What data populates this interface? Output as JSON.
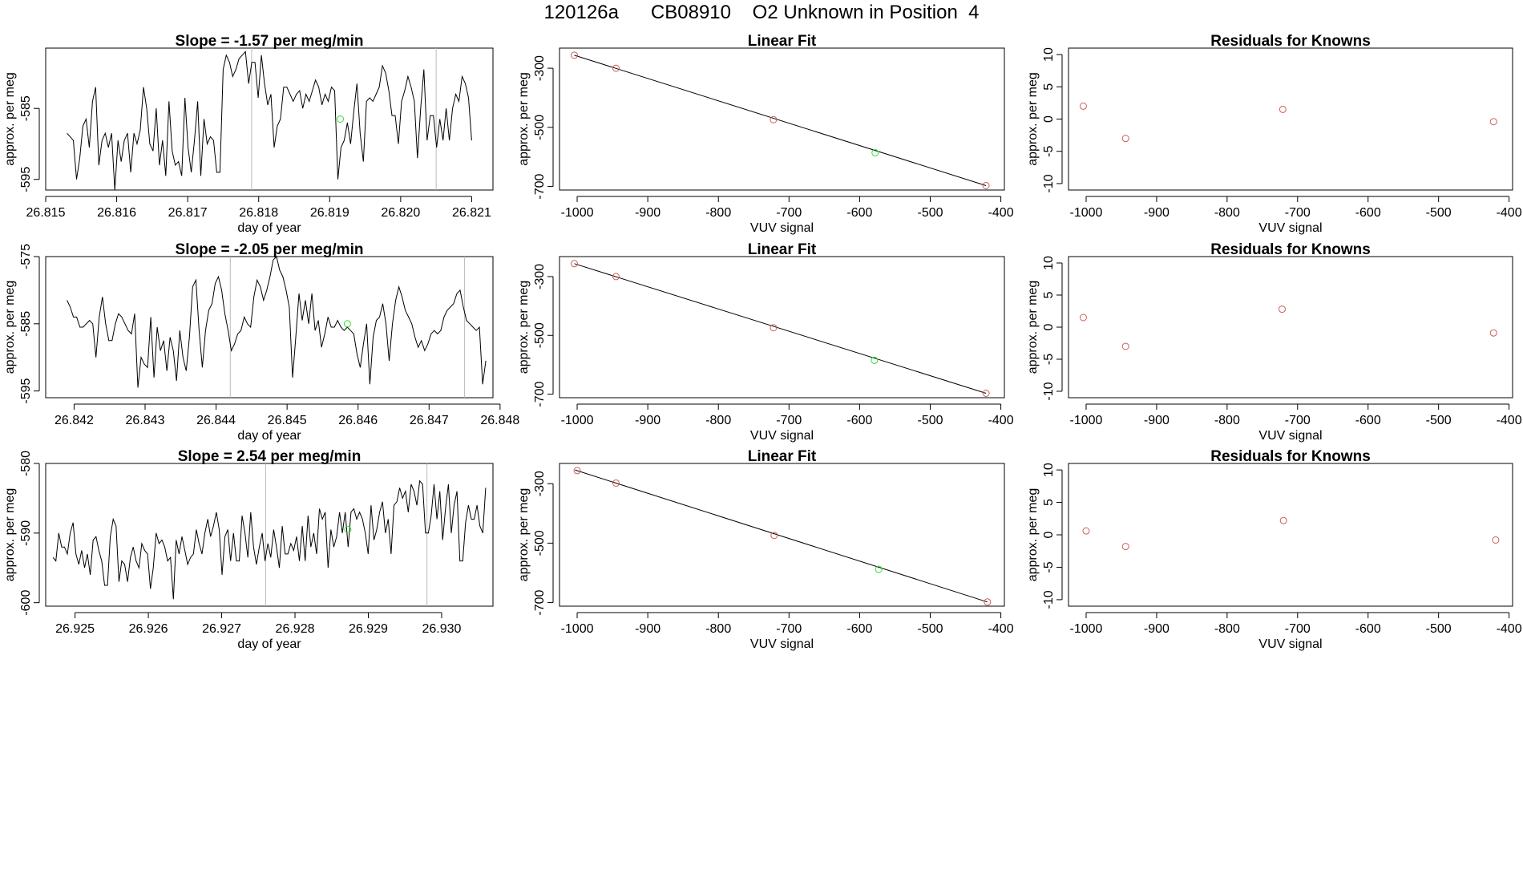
{
  "page_title": "120126a      CB08910    O2 Unknown in Position  4",
  "colors": {
    "known": "#cd5c5c",
    "unknown": "#33dd33",
    "line": "#000000",
    "marker_line": "#bbbbbb"
  },
  "chart_data": [
    {
      "type": "line",
      "panel": "time-series",
      "row": 1,
      "title": "Slope =  -1.57  per meg/min",
      "xlabel": "day of year",
      "ylabel": "approx. per meg",
      "xlim": [
        26.815,
        26.8213
      ],
      "ylim": [
        -596.5,
        -576.5
      ],
      "xticks": [
        26.815,
        26.816,
        26.817,
        26.818,
        26.819,
        26.82,
        26.821
      ],
      "xtick_labels": [
        "26.815",
        "26.816",
        "26.817",
        "26.818",
        "26.819",
        "26.820",
        "26.821"
      ],
      "yticks": [
        -595,
        -585
      ],
      "ytick_labels": [
        "-595",
        "-585"
      ],
      "vlines": [
        26.8179,
        26.8205
      ],
      "unknown_point": {
        "x": 26.81915,
        "y": -586.5
      },
      "x_start": 26.8153,
      "x_end": 26.821,
      "y": [
        -588.5,
        -589,
        -589.5,
        -595,
        -592,
        -587.5,
        -586.5,
        -590.5,
        -584,
        -582,
        -593,
        -589.5,
        -588.5,
        -590.5,
        -588.5,
        -596.5,
        -589.5,
        -592.5,
        -589.5,
        -588.5,
        -594,
        -588.5,
        -590,
        -588,
        -582,
        -585,
        -590,
        -591,
        -585,
        -593,
        -589.5,
        -594.5,
        -584,
        -591,
        -593,
        -592.5,
        -594.5,
        -583.5,
        -590.5,
        -594,
        -589.5,
        -584,
        -594.5,
        -586.5,
        -590,
        -589,
        -589.5,
        -594,
        -594,
        -579.5,
        -577.5,
        -578.5,
        -580.5,
        -579.5,
        -578,
        -577.5,
        -577,
        -581.5,
        -578.5,
        -578.5,
        -583.5,
        -577.5,
        -581.5,
        -584.5,
        -583,
        -590.5,
        -587.5,
        -586.5,
        -582,
        -582,
        -583,
        -584,
        -583,
        -582.5,
        -585,
        -583,
        -584,
        -582.5,
        -581,
        -582,
        -584.5,
        -583,
        -584,
        -582,
        -582.5,
        -595,
        -590.5,
        -589.5,
        -587,
        -590,
        -585.5,
        -581.5,
        -588.5,
        -592.5,
        -584,
        -583.5,
        -584,
        -583,
        -582,
        -579,
        -580,
        -582.5,
        -586,
        -586,
        -590,
        -584,
        -582.5,
        -580.5,
        -582,
        -584,
        -592,
        -585,
        -579.5,
        -589.5,
        -586,
        -586,
        -590.5,
        -586.5,
        -589.5,
        -585,
        -589.5,
        -585,
        -583,
        -584,
        -580.5,
        -581.5,
        -583.5,
        -589.5
      ]
    },
    {
      "type": "line",
      "panel": "time-series",
      "row": 2,
      "title": "Slope =  -2.05  per meg/min",
      "xlabel": "day of year",
      "ylabel": "approx. per meg",
      "xlim": [
        26.8416,
        26.8479
      ],
      "ylim": [
        -596,
        -575
      ],
      "xticks": [
        26.842,
        26.843,
        26.844,
        26.845,
        26.846,
        26.847,
        26.848
      ],
      "xtick_labels": [
        "26.842",
        "26.843",
        "26.844",
        "26.845",
        "26.846",
        "26.847",
        "26.848"
      ],
      "yticks": [
        -595,
        -585,
        -575
      ],
      "ytick_labels": [
        "-595",
        "-585",
        "-575"
      ],
      "vlines": [
        26.8442,
        26.8475
      ],
      "unknown_point": {
        "x": 26.84585,
        "y": -585
      },
      "x_start": 26.8419,
      "x_end": 26.8478,
      "y": [
        -581.5,
        -582.5,
        -584,
        -584,
        -585.5,
        -585.5,
        -585,
        -584.5,
        -585,
        -590,
        -584,
        -581,
        -585,
        -587.5,
        -587.5,
        -585,
        -583.5,
        -584,
        -585,
        -586,
        -586.5,
        -583.5,
        -594.5,
        -590,
        -591,
        -591.5,
        -584,
        -593,
        -585.5,
        -589,
        -587.5,
        -592,
        -587,
        -589,
        -593.5,
        -586,
        -590,
        -592,
        -587,
        -579.5,
        -578.5,
        -586,
        -591.5,
        -586,
        -583,
        -582,
        -579,
        -578,
        -580,
        -583.5,
        -586,
        -589,
        -588,
        -586.5,
        -586,
        -584,
        -585,
        -585.5,
        -581,
        -578.5,
        -579.5,
        -581.5,
        -580,
        -578,
        -575.5,
        -575,
        -577,
        -578,
        -580,
        -582.5,
        -593,
        -587,
        -580.5,
        -584.5,
        -581.5,
        -585,
        -580.5,
        -586,
        -584.5,
        -588.5,
        -586.5,
        -584,
        -585.5,
        -585.5,
        -584.5,
        -585.5,
        -586,
        -585.5,
        -586,
        -586.5,
        -589.5,
        -591.5,
        -588,
        -585,
        -594,
        -587,
        -584.5,
        -584,
        -582,
        -585,
        -590.5,
        -585,
        -581.5,
        -579.5,
        -581,
        -583,
        -584,
        -585,
        -587,
        -588.5,
        -587.5,
        -589,
        -588,
        -586.5,
        -586,
        -586.5,
        -586,
        -584,
        -583,
        -582.5,
        -582,
        -580.5,
        -580,
        -582.5,
        -584.5,
        -585,
        -585.5,
        -586,
        -585.5,
        -594,
        -590.5
      ]
    },
    {
      "type": "line",
      "panel": "time-series",
      "row": 3,
      "title": "Slope =  2.54  per meg/min",
      "xlabel": "day of year",
      "ylabel": "approx. per meg",
      "xlim": [
        26.9246,
        26.9307
      ],
      "ylim": [
        -600.5,
        -580
      ],
      "xticks": [
        26.925,
        26.926,
        26.927,
        26.928,
        26.929,
        26.93
      ],
      "xtick_labels": [
        "26.925",
        "26.926",
        "26.927",
        "26.928",
        "26.929",
        "26.930"
      ],
      "yticks": [
        -600,
        -590,
        -580
      ],
      "ytick_labels": [
        "-600",
        "-590",
        "-580"
      ],
      "vlines": [
        26.9276,
        26.9298
      ],
      "unknown_point": {
        "x": 26.92872,
        "y": -589.5
      },
      "x_start": 26.9247,
      "x_end": 26.9306,
      "y": [
        -593.5,
        -594,
        -590,
        -592,
        -592,
        -593,
        -590,
        -588.5,
        -593,
        -594.5,
        -592.5,
        -595,
        -593,
        -596,
        -591,
        -590.5,
        -592.5,
        -594,
        -597.5,
        -597.5,
        -590.5,
        -588,
        -589,
        -597,
        -594,
        -594.5,
        -597,
        -593.5,
        -592,
        -594,
        -595,
        -591.5,
        -592.5,
        -593,
        -598,
        -595,
        -590,
        -591.5,
        -591,
        -592,
        -594,
        -593.5,
        -599.5,
        -591,
        -593,
        -590.5,
        -592.5,
        -594.5,
        -593.5,
        -593,
        -589.5,
        -591.5,
        -593,
        -590,
        -588,
        -590.5,
        -589,
        -587,
        -589.5,
        -596,
        -590.5,
        -589.5,
        -594,
        -590,
        -594,
        -594,
        -587.5,
        -590,
        -593.5,
        -587,
        -592,
        -594.5,
        -592,
        -590,
        -594,
        -591.5,
        -593.5,
        -589.5,
        -592,
        -595,
        -589,
        -593,
        -593,
        -591.5,
        -592.5,
        -590.5,
        -594,
        -589,
        -594,
        -587.5,
        -592,
        -590,
        -593,
        -586.5,
        -588,
        -587,
        -595,
        -589.5,
        -592,
        -590.5,
        -587,
        -590,
        -587,
        -592,
        -587,
        -586.5,
        -588,
        -587,
        -588,
        -590,
        -593,
        -586,
        -591,
        -589.5,
        -587,
        -585.5,
        -590,
        -588,
        -593,
        -586,
        -585.5,
        -583.5,
        -585,
        -584,
        -587,
        -583,
        -584,
        -586,
        -582.5,
        -583,
        -590,
        -590,
        -587.5,
        -583,
        -588,
        -584,
        -591,
        -586.5,
        -583,
        -590,
        -586,
        -584,
        -594,
        -594,
        -588.5,
        -586,
        -588,
        -588,
        -586,
        -589,
        -590,
        -583.5
      ]
    },
    {
      "type": "scatter",
      "panel": "linear-fit",
      "row": 1,
      "title": "Linear Fit",
      "xlabel": "VUV signal",
      "ylabel": "approx. per meg",
      "xlim": [
        -1025,
        -395
      ],
      "ylim": [
        -712,
        -232
      ],
      "xticks": [
        -1000,
        -900,
        -800,
        -700,
        -600,
        -500,
        -400
      ],
      "xtick_labels": [
        "-1000",
        "-900",
        "-800",
        "-700",
        "-600",
        "-500",
        "-400"
      ],
      "yticks": [
        -300,
        -500,
        -700
      ],
      "ytick_labels": [
        "-300",
        "-500",
        "-700"
      ],
      "fit_line": {
        "x": [
          -1004,
          -421
        ],
        "y": [
          -256,
          -697
        ]
      },
      "known_points": [
        {
          "x": -1004,
          "y": -256
        },
        {
          "x": -945,
          "y": -300
        },
        {
          "x": -722,
          "y": -474
        },
        {
          "x": -421,
          "y": -697
        }
      ],
      "unknown_point": {
        "x": -578,
        "y": -586
      }
    },
    {
      "type": "scatter",
      "panel": "linear-fit",
      "row": 2,
      "title": "Linear Fit",
      "xlabel": "VUV signal",
      "ylabel": "approx. per meg",
      "xlim": [
        -1025,
        -395
      ],
      "ylim": [
        -712,
        -232
      ],
      "xticks": [
        -1000,
        -900,
        -800,
        -700,
        -600,
        -500,
        -400
      ],
      "xtick_labels": [
        "-1000",
        "-900",
        "-800",
        "-700",
        "-600",
        "-500",
        "-400"
      ],
      "yticks": [
        -300,
        -500,
        -700
      ],
      "ytick_labels": [
        "-300",
        "-500",
        "-700"
      ],
      "fit_line": {
        "x": [
          -1004,
          -421
        ],
        "y": [
          -256,
          -697
        ]
      },
      "known_points": [
        {
          "x": -1004,
          "y": -256
        },
        {
          "x": -945,
          "y": -300
        },
        {
          "x": -722,
          "y": -474
        },
        {
          "x": -421,
          "y": -697
        }
      ],
      "unknown_point": {
        "x": -579,
        "y": -585
      }
    },
    {
      "type": "scatter",
      "panel": "linear-fit",
      "row": 3,
      "title": "Linear Fit",
      "xlabel": "VUV signal",
      "ylabel": "approx. per meg",
      "xlim": [
        -1025,
        -395
      ],
      "ylim": [
        -712,
        -232
      ],
      "xticks": [
        -1000,
        -900,
        -800,
        -700,
        -600,
        -500,
        -400
      ],
      "xtick_labels": [
        "-1000",
        "-900",
        "-800",
        "-700",
        "-600",
        "-500",
        "-400"
      ],
      "yticks": [
        -300,
        -500,
        -700
      ],
      "ytick_labels": [
        "-300",
        "-500",
        "-700"
      ],
      "fit_line": {
        "x": [
          -1003,
          -419
        ],
        "y": [
          -254,
          -698
        ]
      },
      "known_points": [
        {
          "x": -1000,
          "y": -256
        },
        {
          "x": -945,
          "y": -298
        },
        {
          "x": -721,
          "y": -474
        },
        {
          "x": -419,
          "y": -698
        }
      ],
      "unknown_point": {
        "x": -573,
        "y": -588
      }
    },
    {
      "type": "scatter",
      "panel": "residuals",
      "row": 1,
      "title": "Residuals for Knowns",
      "xlabel": "VUV signal",
      "ylabel": "approx. per meg",
      "xlim": [
        -1025,
        -395
      ],
      "ylim": [
        -11,
        11
      ],
      "xticks": [
        -1000,
        -900,
        -800,
        -700,
        -600,
        -500,
        -400
      ],
      "xtick_labels": [
        "-1000",
        "-900",
        "-800",
        "-700",
        "-600",
        "-500",
        "-400"
      ],
      "yticks": [
        -10,
        -5,
        0,
        5,
        10
      ],
      "ytick_labels": [
        "-10",
        "-5",
        "0",
        "5",
        "10"
      ],
      "known_points": [
        {
          "x": -1004,
          "y": 2
        },
        {
          "x": -944,
          "y": -3
        },
        {
          "x": -721,
          "y": 1.5
        },
        {
          "x": -422,
          "y": -0.4
        }
      ]
    },
    {
      "type": "scatter",
      "panel": "residuals",
      "row": 2,
      "title": "Residuals for Knowns",
      "xlabel": "VUV signal",
      "ylabel": "approx. per meg",
      "xlim": [
        -1025,
        -395
      ],
      "ylim": [
        -11,
        11
      ],
      "xticks": [
        -1000,
        -900,
        -800,
        -700,
        -600,
        -500,
        -400
      ],
      "xtick_labels": [
        "-1000",
        "-900",
        "-800",
        "-700",
        "-600",
        "-500",
        "-400"
      ],
      "yticks": [
        -10,
        -5,
        0,
        5,
        10
      ],
      "ytick_labels": [
        "-10",
        "-5",
        "0",
        "5",
        "10"
      ],
      "known_points": [
        {
          "x": -1004,
          "y": 1.5
        },
        {
          "x": -944,
          "y": -3
        },
        {
          "x": -722,
          "y": 2.8
        },
        {
          "x": -422,
          "y": -0.9
        }
      ]
    },
    {
      "type": "scatter",
      "panel": "residuals",
      "row": 3,
      "title": "Residuals for Knowns",
      "xlabel": "VUV signal",
      "ylabel": "approx. per meg",
      "xlim": [
        -1025,
        -395
      ],
      "ylim": [
        -11,
        11
      ],
      "xticks": [
        -1000,
        -900,
        -800,
        -700,
        -600,
        -500,
        -400
      ],
      "xtick_labels": [
        "-1000",
        "-900",
        "-800",
        "-700",
        "-600",
        "-500",
        "-400"
      ],
      "yticks": [
        -10,
        -5,
        0,
        5,
        10
      ],
      "ytick_labels": [
        "-10",
        "-5",
        "0",
        "5",
        "10"
      ],
      "known_points": [
        {
          "x": -1000,
          "y": 0.6
        },
        {
          "x": -944,
          "y": -1.8
        },
        {
          "x": -720,
          "y": 2.2
        },
        {
          "x": -419,
          "y": -0.8
        }
      ]
    }
  ]
}
